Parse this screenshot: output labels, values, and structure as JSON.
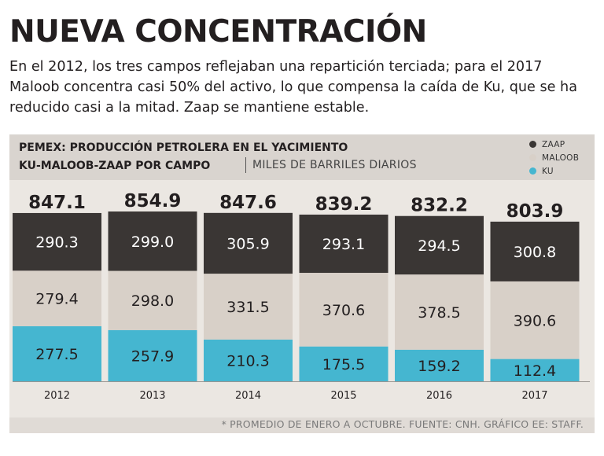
{
  "header": {
    "title": "NUEVA CONCENTRACIÓN",
    "subtitle": "En el 2012, los tres campos reflejaban una repartición terciada; para el 2017 Maloob concentra casi 50% del activo, lo que compensa la caída de Ku, que se ha reducido casi a la mitad. Zaap se mantiene estable."
  },
  "chart_header": {
    "title_line1": "PEMEX: PRODUCCIÓN PETROLERA EN EL YACIMIENTO",
    "title_line2": "KU-MALOOB-ZAAP POR CAMPO",
    "unit": "MILES DE BARRILES DIARIOS"
  },
  "legend": [
    {
      "label": "ZAAP",
      "color": "#3a3634"
    },
    {
      "label": "MALOOB",
      "color": "#d8d0c8"
    },
    {
      "label": "KU",
      "color": "#45b6d0"
    }
  ],
  "footer": {
    "source": "* PROMEDIO DE ENERO A OCTUBRE. FUENTE: CNH. GRÁFICO EE: STAFF."
  },
  "chart_data": {
    "type": "bar",
    "stacked": true,
    "categories": [
      "2012",
      "2013",
      "2014",
      "2015",
      "2016",
      "2017"
    ],
    "series": [
      {
        "name": "KU",
        "color": "#45b6d0",
        "values": [
          277.5,
          257.9,
          210.3,
          175.5,
          159.2,
          112.4
        ]
      },
      {
        "name": "MALOOB",
        "color": "#d8d0c8",
        "values": [
          279.4,
          298.0,
          331.5,
          370.6,
          378.5,
          390.6
        ]
      },
      {
        "name": "ZAAP",
        "color": "#3a3634",
        "values": [
          290.3,
          299.0,
          305.9,
          293.1,
          294.5,
          300.8
        ]
      }
    ],
    "value_labels": {
      "KU": [
        "277.5",
        "257.9",
        "210.3",
        "175.5",
        "159.2",
        "112.4"
      ],
      "MALOOB": [
        "279.4",
        "298.0",
        "331.5",
        "370.6",
        "378.5",
        "390.6"
      ],
      "ZAAP": [
        "290.3",
        "299.0",
        "305.9",
        "293.1",
        "294.5",
        "300.8"
      ]
    },
    "totals": [
      "847.1",
      "854.9",
      "847.6",
      "839.2",
      "832.2",
      "803.9"
    ],
    "ylim": [
      0,
      854.9
    ],
    "grid": false,
    "legend_position": "top-right"
  }
}
